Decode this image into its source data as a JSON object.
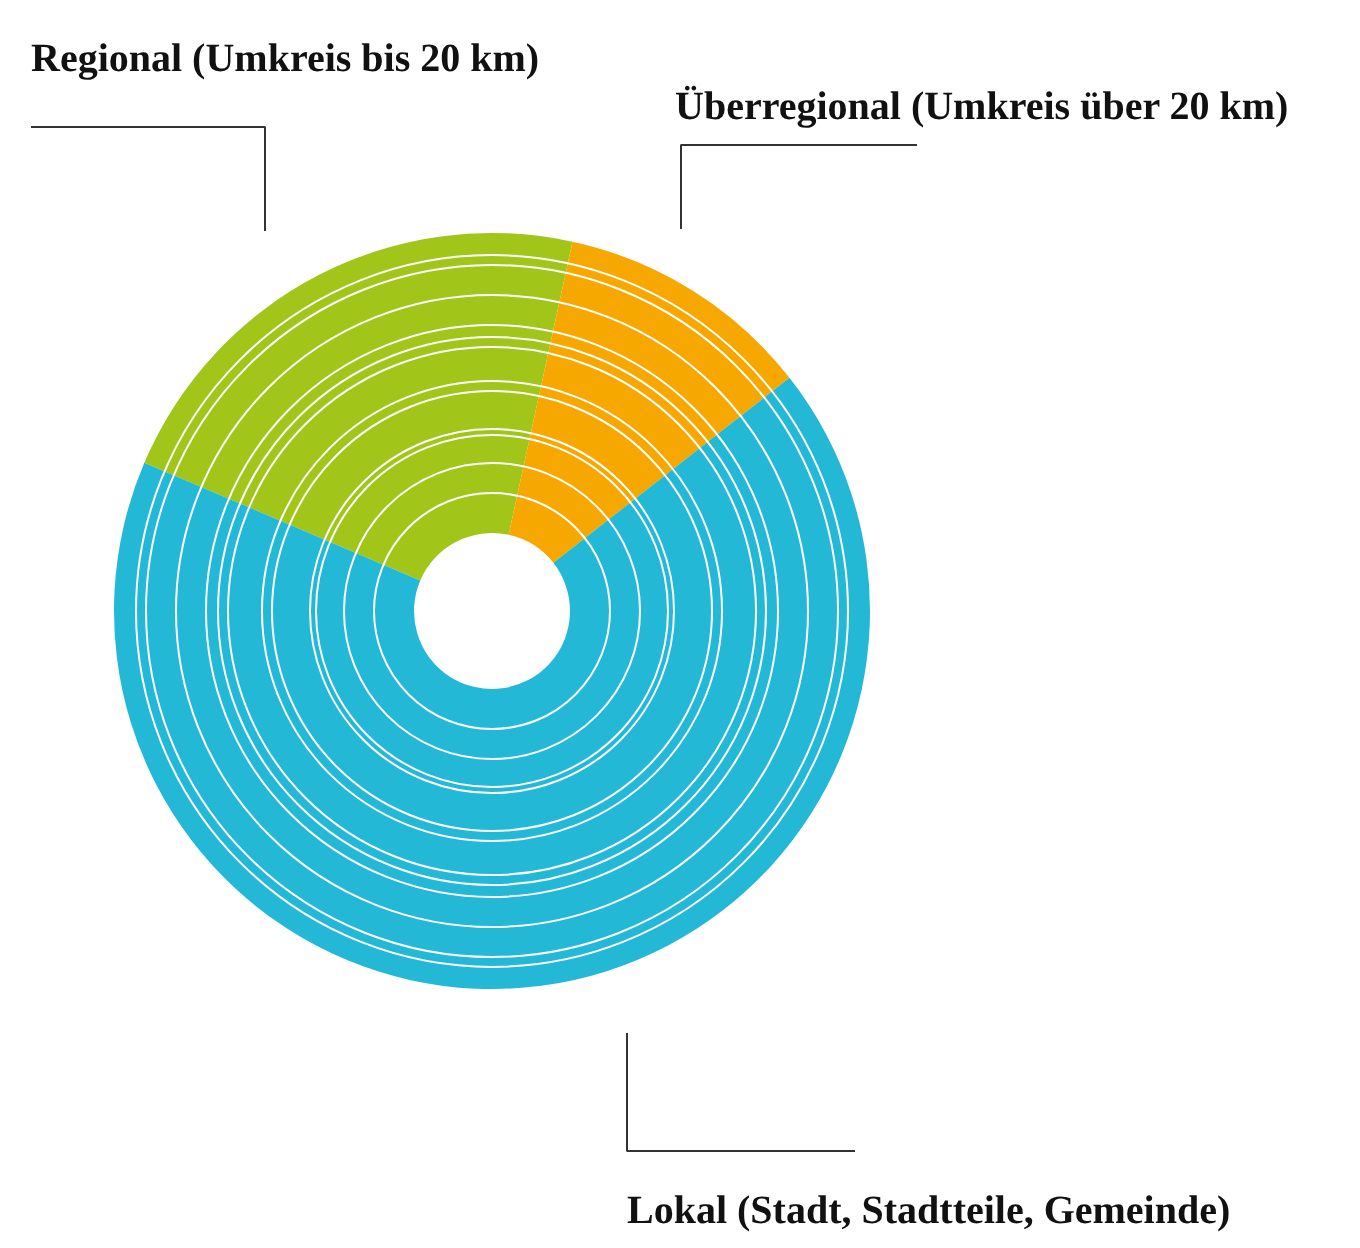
{
  "chart_data": {
    "type": "donut",
    "categories": [
      "Regional (Umkreis bis 20 km)",
      "Überregional (Umkreis über 20 km)",
      "Lokal (Stadt, Stadtteile, Gemeinde)"
    ],
    "values": [
      22,
      11,
      67
    ],
    "colors": [
      "#a2c51a",
      "#f7a800",
      "#24b8d7"
    ]
  }
}
